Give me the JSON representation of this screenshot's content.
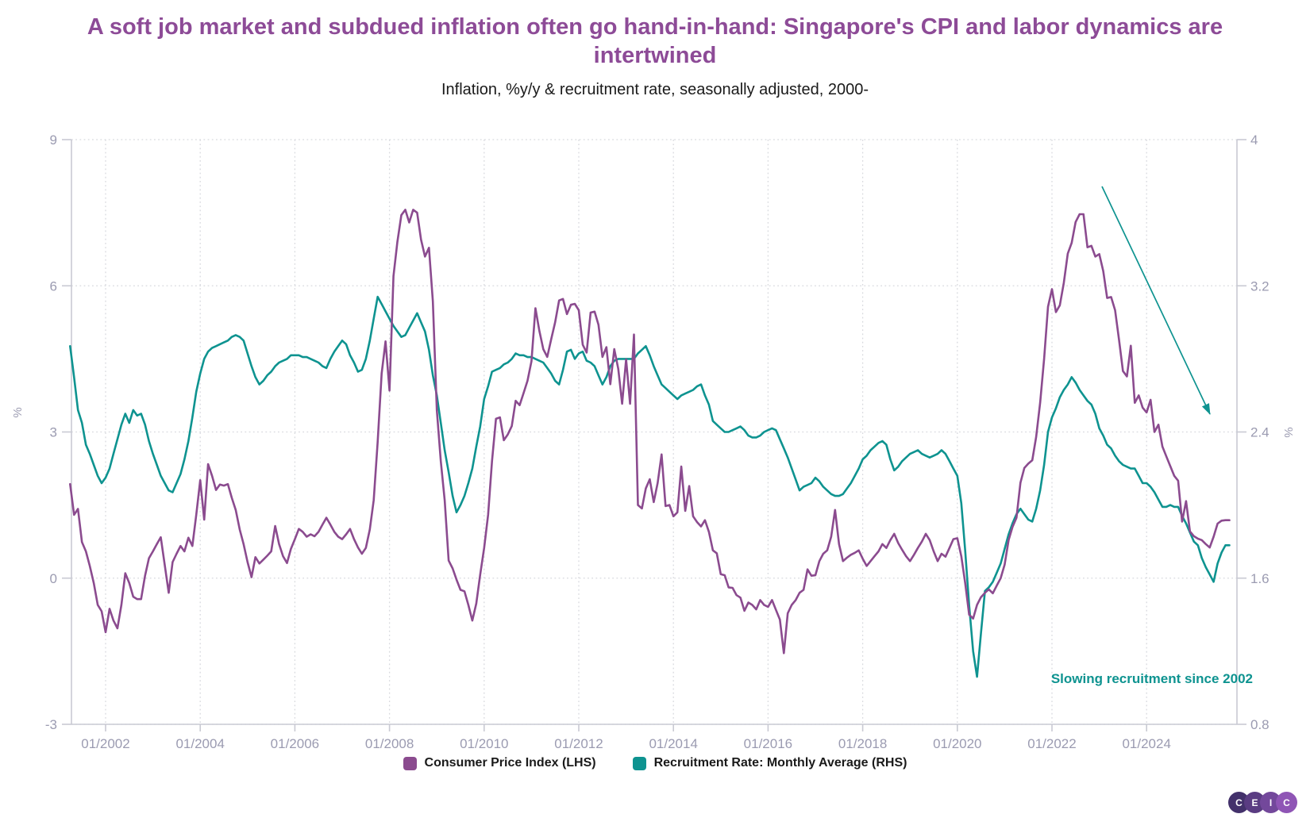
{
  "title": "A soft job market and subdued inflation often go hand-in-hand: Singapore's CPI and labor dynamics are intertwined",
  "subtitle": "Inflation, %y/y & recruitment rate, seasonally adjusted, 2000-",
  "colors": {
    "title": "#8d4b97",
    "cpi_line": "#8b4b8f",
    "recruit_line": "#0e9390",
    "axis_text": "#9b9bb1",
    "grid": "#d8d9de",
    "axis_line": "#c9cad3",
    "legend_text": "#1a1a1a"
  },
  "annotation": {
    "text": "Slowing recruitment since 2002",
    "color": "#0e9390"
  },
  "legend": [
    {
      "label": "Consumer Price Index (LHS)",
      "color": "#8b4b8f"
    },
    {
      "label": "Recruitment Rate: Monthly Average (RHS)",
      "color": "#0e9390"
    }
  ],
  "logo": {
    "letters": [
      "C",
      "E",
      "I",
      "C"
    ],
    "colors": [
      "#43316b",
      "#5a3c82",
      "#73489b",
      "#8f55b5"
    ]
  },
  "chart_data": {
    "type": "line",
    "title": "Inflation, %y/y & recruitment rate, seasonally adjusted, 2000-",
    "frequency": "monthly",
    "x_start": "2001-04",
    "x_end": "2025-10",
    "x_ticks": [
      "01/2002",
      "01/2004",
      "01/2006",
      "01/2008",
      "01/2010",
      "01/2012",
      "01/2014",
      "01/2016",
      "01/2018",
      "01/2020",
      "01/2022",
      "01/2024"
    ],
    "x_tick_years": [
      2002,
      2004,
      2006,
      2008,
      2010,
      2012,
      2014,
      2016,
      2018,
      2020,
      2022,
      2024
    ],
    "left_axis": {
      "label": "%",
      "ticks": [
        9,
        6,
        3,
        0,
        -3
      ],
      "range": [
        -3,
        9
      ]
    },
    "right_axis": {
      "label": "%",
      "ticks": [
        4,
        3.2,
        2.4,
        1.6,
        0.8
      ],
      "range": [
        0.8,
        4
      ]
    },
    "grid": "dotted",
    "legend_position": "bottom",
    "series": [
      {
        "name": "Consumer Price Index (LHS)",
        "axis": "left",
        "color": "#8b4b8f",
        "values": [
          1.93,
          1.3,
          1.42,
          0.74,
          0.55,
          0.25,
          -0.1,
          -0.55,
          -0.68,
          -1.11,
          -0.63,
          -0.87,
          -1.03,
          -0.55,
          0.1,
          -0.1,
          -0.38,
          -0.43,
          -0.43,
          0.05,
          0.41,
          0.55,
          0.7,
          0.84,
          0.27,
          -0.3,
          0.33,
          0.5,
          0.66,
          0.55,
          0.83,
          0.66,
          1.3,
          2.01,
          1.2,
          2.34,
          2.1,
          1.81,
          1.92,
          1.9,
          1.93,
          1.65,
          1.4,
          1.0,
          0.7,
          0.33,
          0.02,
          0.43,
          0.3,
          0.38,
          0.46,
          0.55,
          1.07,
          0.7,
          0.45,
          0.31,
          0.6,
          0.8,
          1.01,
          0.95,
          0.85,
          0.9,
          0.86,
          0.95,
          1.1,
          1.24,
          1.1,
          0.95,
          0.85,
          0.8,
          0.9,
          1.01,
          0.8,
          0.63,
          0.5,
          0.62,
          1.0,
          1.6,
          2.8,
          4.2,
          4.86,
          3.85,
          6.2,
          6.9,
          7.45,
          7.56,
          7.3,
          7.56,
          7.5,
          6.95,
          6.6,
          6.78,
          5.68,
          3.45,
          2.4,
          1.6,
          0.36,
          0.2,
          -0.03,
          -0.24,
          -0.27,
          -0.55,
          -0.87,
          -0.52,
          0.07,
          0.62,
          1.3,
          2.4,
          3.27,
          3.3,
          2.83,
          2.95,
          3.12,
          3.64,
          3.55,
          3.8,
          4.05,
          4.45,
          5.54,
          5.08,
          4.7,
          4.54,
          4.9,
          5.25,
          5.7,
          5.73,
          5.42,
          5.61,
          5.63,
          5.5,
          4.79,
          4.63,
          5.45,
          5.47,
          5.2,
          4.54,
          4.74,
          3.98,
          4.7,
          4.3,
          3.58,
          4.49,
          3.58,
          5.0,
          1.5,
          1.43,
          1.84,
          2.03,
          1.56,
          1.95,
          2.54,
          1.48,
          1.5,
          1.27,
          1.35,
          2.29,
          1.38,
          1.89,
          1.27,
          1.15,
          1.06,
          1.19,
          0.95,
          0.57,
          0.51,
          0.08,
          0.06,
          -0.19,
          -0.2,
          -0.35,
          -0.4,
          -0.67,
          -0.5,
          -0.55,
          -0.64,
          -0.45,
          -0.55,
          -0.59,
          -0.45,
          -0.65,
          -0.85,
          -1.54,
          -0.72,
          -0.55,
          -0.45,
          -0.3,
          -0.24,
          0.18,
          0.05,
          0.06,
          0.35,
          0.5,
          0.57,
          0.85,
          1.4,
          0.7,
          0.35,
          0.42,
          0.48,
          0.52,
          0.57,
          0.4,
          0.25,
          0.35,
          0.45,
          0.55,
          0.7,
          0.62,
          0.78,
          0.91,
          0.72,
          0.58,
          0.45,
          0.35,
          0.48,
          0.62,
          0.75,
          0.91,
          0.78,
          0.55,
          0.35,
          0.5,
          0.44,
          0.62,
          0.8,
          0.82,
          0.45,
          -0.1,
          -0.75,
          -0.83,
          -0.55,
          -0.39,
          -0.3,
          -0.23,
          -0.31,
          -0.15,
          0.0,
          0.28,
          0.78,
          1.05,
          1.24,
          1.96,
          2.26,
          2.35,
          2.42,
          2.9,
          3.6,
          4.5,
          5.57,
          5.93,
          5.46,
          5.6,
          6.06,
          6.66,
          6.88,
          7.31,
          7.47,
          7.47,
          6.79,
          6.82,
          6.6,
          6.65,
          6.3,
          5.75,
          5.77,
          5.5,
          4.9,
          4.25,
          4.14,
          4.77,
          3.6,
          3.75,
          3.5,
          3.4,
          3.66,
          3.0,
          3.15,
          2.7,
          2.5,
          2.3,
          2.1,
          2.0,
          1.16,
          1.58,
          0.96,
          0.86,
          0.81,
          0.78,
          0.7,
          0.63,
          0.85,
          1.12,
          1.18,
          1.19,
          1.19
        ]
      },
      {
        "name": "Recruitment Rate: Monthly Average (RHS)",
        "axis": "right",
        "color": "#0e9390",
        "values": [
          2.87,
          2.7,
          2.52,
          2.45,
          2.33,
          2.28,
          2.22,
          2.16,
          2.12,
          2.15,
          2.2,
          2.28,
          2.36,
          2.44,
          2.5,
          2.45,
          2.52,
          2.49,
          2.5,
          2.44,
          2.35,
          2.28,
          2.22,
          2.16,
          2.12,
          2.08,
          2.07,
          2.12,
          2.17,
          2.25,
          2.35,
          2.48,
          2.62,
          2.72,
          2.8,
          2.84,
          2.86,
          2.87,
          2.88,
          2.89,
          2.9,
          2.92,
          2.93,
          2.92,
          2.9,
          2.83,
          2.76,
          2.7,
          2.66,
          2.68,
          2.71,
          2.73,
          2.76,
          2.78,
          2.79,
          2.8,
          2.82,
          2.82,
          2.82,
          2.81,
          2.81,
          2.8,
          2.79,
          2.78,
          2.76,
          2.75,
          2.8,
          2.84,
          2.87,
          2.9,
          2.88,
          2.82,
          2.78,
          2.73,
          2.74,
          2.8,
          2.9,
          3.02,
          3.14,
          3.1,
          3.06,
          3.02,
          2.98,
          2.95,
          2.92,
          2.93,
          2.97,
          3.01,
          3.05,
          3.0,
          2.95,
          2.85,
          2.71,
          2.6,
          2.45,
          2.3,
          2.18,
          2.05,
          1.96,
          2.0,
          2.05,
          2.12,
          2.2,
          2.32,
          2.43,
          2.58,
          2.65,
          2.73,
          2.74,
          2.75,
          2.77,
          2.78,
          2.8,
          2.83,
          2.82,
          2.82,
          2.81,
          2.81,
          2.8,
          2.79,
          2.78,
          2.75,
          2.72,
          2.68,
          2.66,
          2.74,
          2.84,
          2.85,
          2.8,
          2.83,
          2.84,
          2.79,
          2.78,
          2.76,
          2.71,
          2.66,
          2.7,
          2.76,
          2.79,
          2.8,
          2.8,
          2.8,
          2.8,
          2.8,
          2.83,
          2.85,
          2.87,
          2.82,
          2.76,
          2.71,
          2.66,
          2.64,
          2.62,
          2.6,
          2.58,
          2.6,
          2.61,
          2.62,
          2.63,
          2.65,
          2.66,
          2.6,
          2.55,
          2.46,
          2.44,
          2.42,
          2.4,
          2.4,
          2.41,
          2.42,
          2.43,
          2.41,
          2.38,
          2.37,
          2.37,
          2.38,
          2.4,
          2.41,
          2.42,
          2.41,
          2.36,
          2.31,
          2.26,
          2.2,
          2.14,
          2.08,
          2.1,
          2.11,
          2.12,
          2.15,
          2.13,
          2.1,
          2.08,
          2.06,
          2.05,
          2.05,
          2.06,
          2.09,
          2.12,
          2.16,
          2.2,
          2.25,
          2.27,
          2.3,
          2.32,
          2.34,
          2.35,
          2.33,
          2.25,
          2.19,
          2.21,
          2.24,
          2.26,
          2.28,
          2.29,
          2.3,
          2.28,
          2.27,
          2.26,
          2.27,
          2.28,
          2.3,
          2.28,
          2.24,
          2.2,
          2.16,
          2.01,
          1.75,
          1.45,
          1.2,
          1.06,
          1.3,
          1.53,
          1.55,
          1.58,
          1.63,
          1.68,
          1.76,
          1.84,
          1.9,
          1.95,
          1.98,
          1.95,
          1.92,
          1.91,
          1.98,
          2.08,
          2.22,
          2.4,
          2.48,
          2.53,
          2.59,
          2.63,
          2.66,
          2.7,
          2.67,
          2.63,
          2.6,
          2.57,
          2.55,
          2.5,
          2.42,
          2.38,
          2.33,
          2.31,
          2.27,
          2.24,
          2.22,
          2.21,
          2.2,
          2.2,
          2.16,
          2.12,
          2.12,
          2.1,
          2.07,
          2.03,
          1.99,
          1.99,
          2.0,
          1.99,
          1.99,
          1.94,
          1.9,
          1.85,
          1.8,
          1.78,
          1.71,
          1.66,
          1.62,
          1.58,
          1.68,
          1.74,
          1.78,
          1.78
        ]
      }
    ]
  }
}
